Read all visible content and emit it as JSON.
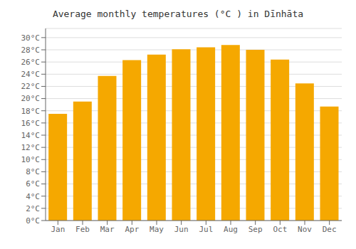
{
  "chart_data": {
    "type": "bar",
    "title": "Average monthly temperatures (°C ) in Dīnhāta",
    "categories": [
      "Jan",
      "Feb",
      "Mar",
      "Apr",
      "May",
      "Jun",
      "Jul",
      "Aug",
      "Sep",
      "Oct",
      "Nov",
      "Dec"
    ],
    "values": [
      17.5,
      19.5,
      23.7,
      26.3,
      27.2,
      28.1,
      28.4,
      28.8,
      28.0,
      26.4,
      22.5,
      18.7
    ],
    "color": "#F5A800",
    "ylim": [
      0,
      31.5
    ],
    "yticks": [
      {
        "value": 0,
        "label": "0°C"
      },
      {
        "value": 2,
        "label": "2°C"
      },
      {
        "value": 4,
        "label": "4°C"
      },
      {
        "value": 6,
        "label": "6°C"
      },
      {
        "value": 8,
        "label": "8°C"
      },
      {
        "value": 10,
        "label": "10°C"
      },
      {
        "value": 12,
        "label": "12°C"
      },
      {
        "value": 14,
        "label": "14°C"
      },
      {
        "value": 16,
        "label": "16°C"
      },
      {
        "value": 18,
        "label": "18°C"
      },
      {
        "value": 20,
        "label": "20°C"
      },
      {
        "value": 22,
        "label": "22°C"
      },
      {
        "value": 24,
        "label": "24°C"
      },
      {
        "value": 26,
        "label": "26°C"
      },
      {
        "value": 28,
        "label": "28°C"
      },
      {
        "value": 30,
        "label": "30°C"
      }
    ],
    "grid": true
  }
}
